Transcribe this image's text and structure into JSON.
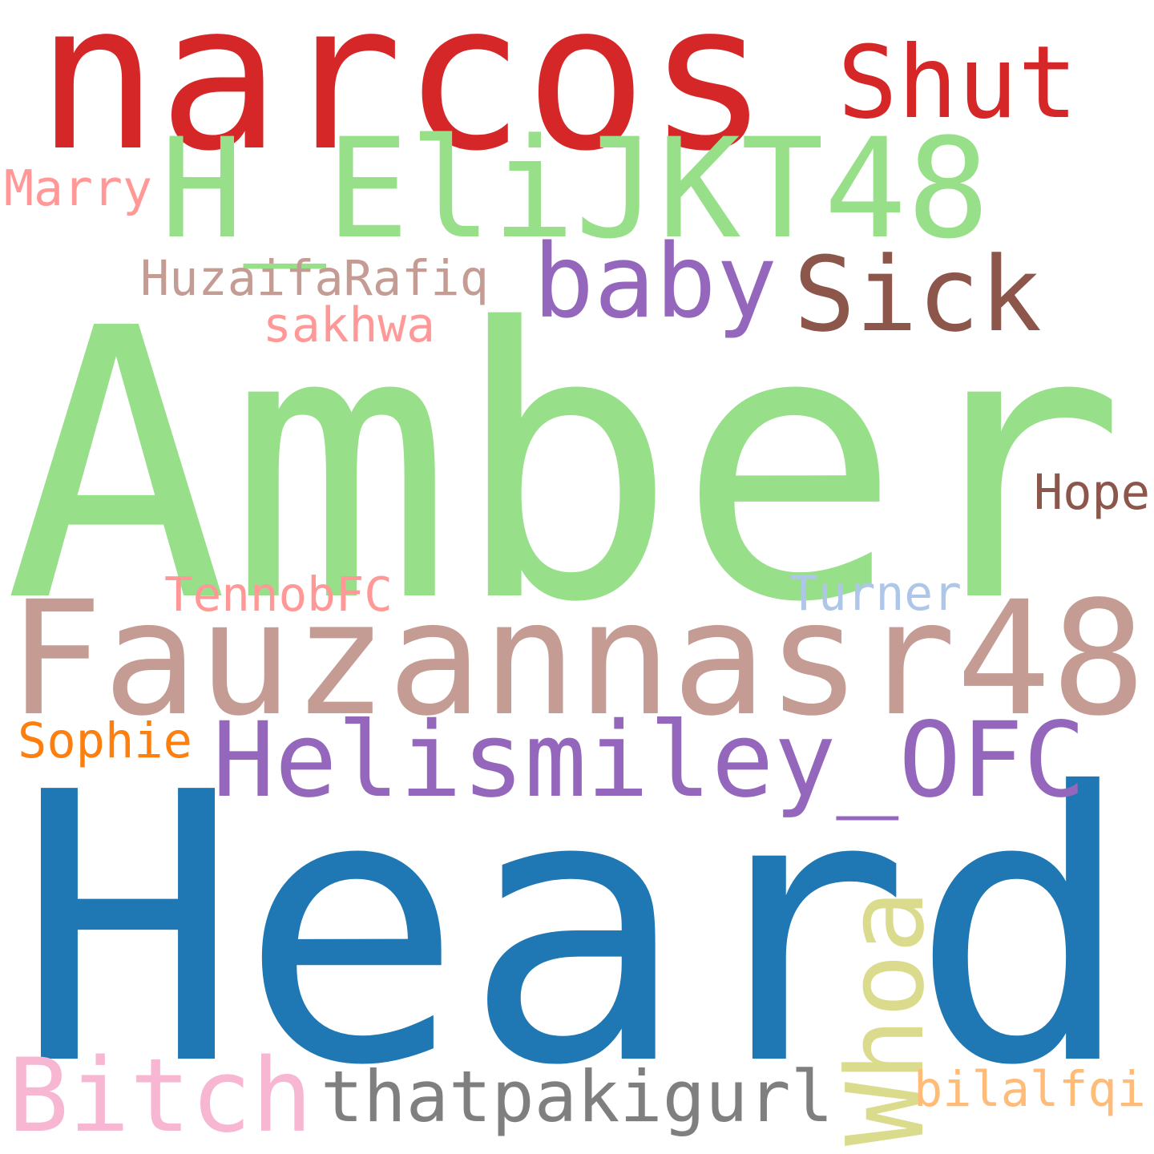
{
  "words": [
    {
      "key": "amber",
      "text": "Amber",
      "color": "#98df8a"
    },
    {
      "key": "heard",
      "text": "Heard",
      "color": "#1f77b4"
    },
    {
      "key": "narcos",
      "text": "narcos",
      "color": "#d62728"
    },
    {
      "key": "fauzan",
      "text": "Fauzannasr48",
      "color": "#c49c94"
    },
    {
      "key": "heli",
      "text": "H_EliJKT48",
      "color": "#98df8a"
    },
    {
      "key": "helism",
      "text": "Helismiley_OFC",
      "color": "#9467bd"
    },
    {
      "key": "bitch",
      "text": "Bitch",
      "color": "#f7b6d2"
    },
    {
      "key": "sick",
      "text": "Sick",
      "color": "#8c564b"
    },
    {
      "key": "shut",
      "text": "Shut",
      "color": "#d62728"
    },
    {
      "key": "baby",
      "text": "baby",
      "color": "#9467bd"
    },
    {
      "key": "thatpak",
      "text": "thatpakigurl",
      "color": "#7f7f7f"
    },
    {
      "key": "whoa",
      "text": "Whoa",
      "color": "#dbdb8d"
    },
    {
      "key": "huzaifa",
      "text": "HuzaifaRafiq",
      "color": "#c49c94"
    },
    {
      "key": "sakhwa",
      "text": "sakhwa",
      "color": "#ff9896"
    },
    {
      "key": "marry",
      "text": "Marry",
      "color": "#ff9896"
    },
    {
      "key": "hope",
      "text": "Hope",
      "color": "#8c564b"
    },
    {
      "key": "tennob",
      "text": "TennobFC",
      "color": "#ff9896"
    },
    {
      "key": "turner",
      "text": "Turner",
      "color": "#aec7e8"
    },
    {
      "key": "sophie",
      "text": "Sophie",
      "color": "#ff7f0e"
    },
    {
      "key": "bilal",
      "text": "bilalfqi",
      "color": "#ffbb78"
    }
  ]
}
